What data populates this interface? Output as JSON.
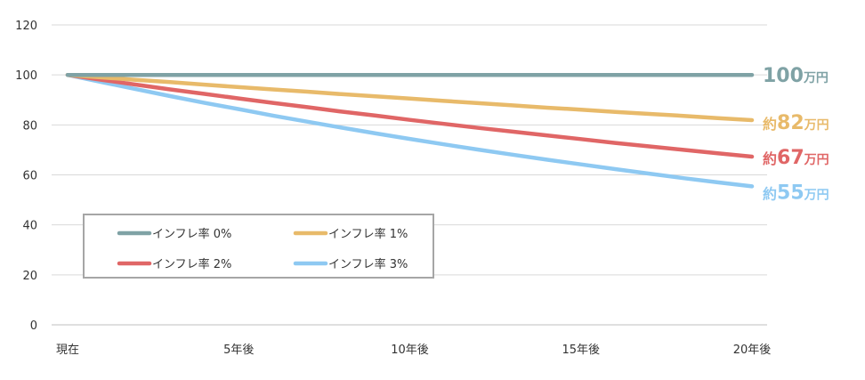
{
  "chart_data": {
    "type": "line",
    "categories": [
      "現在",
      "",
      "",
      "",
      "",
      "5年後",
      "",
      "",
      "",
      "",
      "10年後",
      "",
      "",
      "",
      "",
      "15年後",
      "",
      "",
      "",
      "",
      "20年後"
    ],
    "ylim": [
      0,
      120
    ],
    "yticks": [
      0,
      20,
      40,
      60,
      80,
      100,
      120
    ],
    "grid": true,
    "legend_position": "lower-left",
    "series": [
      {
        "name": "インフレ率 0%",
        "color": "#7fa2a5",
        "values": [
          100,
          100,
          100,
          100,
          100,
          100,
          100,
          100,
          100,
          100,
          100,
          100,
          100,
          100,
          100,
          100,
          100,
          100,
          100,
          100,
          100
        ],
        "end_label": {
          "prefix": "",
          "number": "100",
          "unit": "万円"
        }
      },
      {
        "name": "インフレ率 1%",
        "color": "#e8ba6a",
        "values": [
          100,
          99.0,
          98.0,
          97.1,
          96.1,
          95.1,
          94.2,
          93.3,
          92.3,
          91.4,
          90.5,
          89.6,
          88.7,
          87.8,
          86.9,
          86.1,
          85.2,
          84.4,
          83.6,
          82.7,
          81.9
        ],
        "end_label": {
          "prefix": "約",
          "number": "82",
          "unit": "万円"
        }
      },
      {
        "name": "インフレ率 2%",
        "color": "#e06666",
        "values": [
          100,
          98.0,
          96.1,
          94.2,
          92.4,
          90.6,
          88.8,
          87.1,
          85.3,
          83.7,
          82.0,
          80.4,
          78.8,
          77.3,
          75.8,
          74.3,
          72.8,
          71.4,
          70.0,
          68.6,
          67.3
        ],
        "end_label": {
          "prefix": "約",
          "number": "67",
          "unit": "万円"
        }
      },
      {
        "name": "インフレ率 3%",
        "color": "#8ec9f2",
        "values": [
          100,
          97.1,
          94.3,
          91.5,
          88.8,
          86.3,
          83.7,
          81.3,
          78.9,
          76.6,
          74.4,
          72.2,
          70.1,
          68.1,
          66.1,
          64.2,
          62.3,
          60.5,
          58.7,
          57.0,
          55.4
        ],
        "end_label": {
          "prefix": "約",
          "number": "55",
          "unit": "万円"
        }
      }
    ]
  }
}
